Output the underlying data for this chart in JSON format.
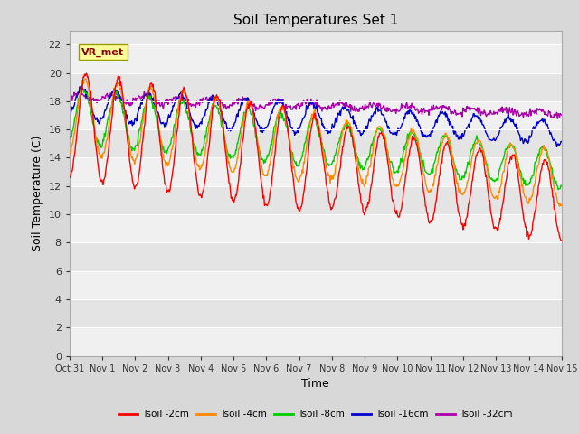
{
  "title": "Soil Temperatures Set 1",
  "xlabel": "Time",
  "ylabel": "Soil Temperature (C)",
  "ylim": [
    0,
    23
  ],
  "yticks": [
    0,
    2,
    4,
    6,
    8,
    10,
    12,
    14,
    16,
    18,
    20,
    22
  ],
  "xtick_labels": [
    "Oct 31",
    "Nov 1",
    "Nov 2",
    "Nov 3",
    "Nov 4",
    "Nov 5",
    "Nov 6",
    "Nov 7",
    "Nov 8",
    "Nov 9",
    "Nov 10",
    "Nov 11",
    "Nov 12",
    "Nov 13",
    "Nov 14",
    "Nov 15"
  ],
  "colors": {
    "Tsoil -2cm": "#ff0000",
    "Tsoil -4cm": "#ff8800",
    "Tsoil -8cm": "#00cc00",
    "Tsoil -16cm": "#0000cc",
    "Tsoil -32cm": "#aa00aa"
  },
  "fig_bg": "#d8d8d8",
  "annotation_text": "VR_met",
  "annotation_color": "#880000",
  "annotation_bg": "#ffff99",
  "n_days": 15,
  "n_pts_per_day": 48
}
